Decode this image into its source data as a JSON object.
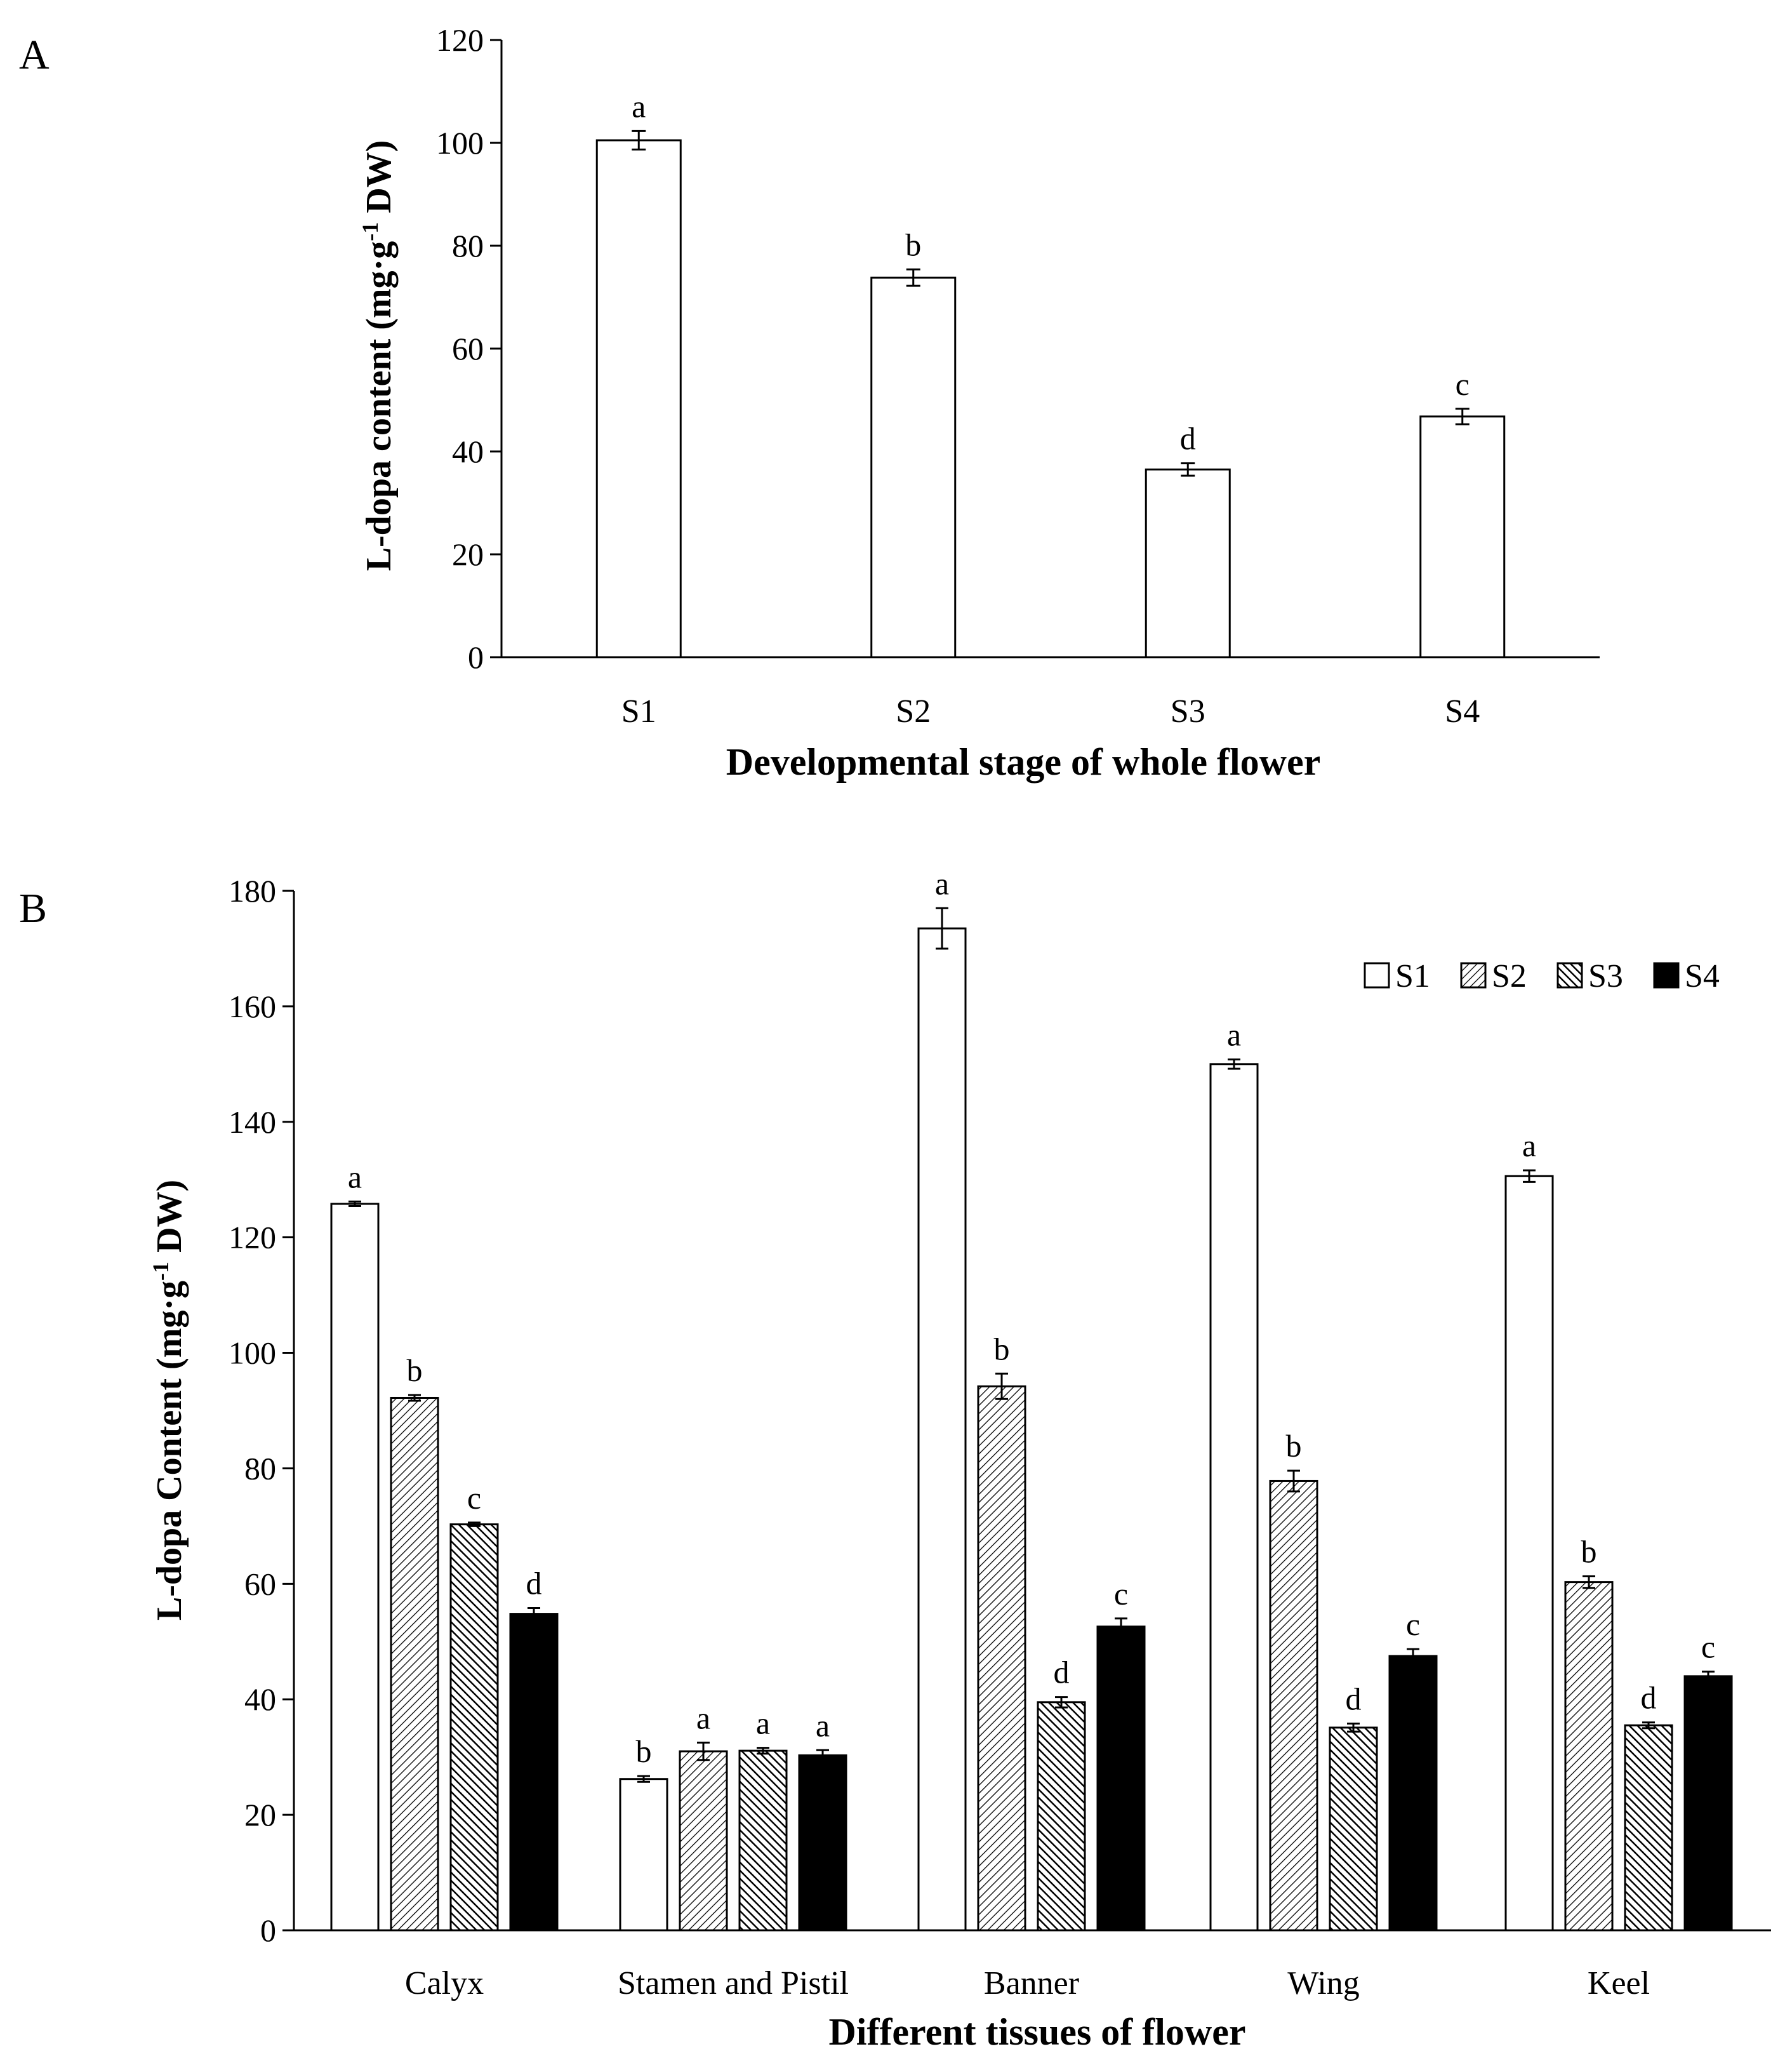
{
  "chart_data": [
    {
      "panel": "A",
      "type": "bar",
      "categories": [
        "S1",
        "S2",
        "S3",
        "S4"
      ],
      "values": [
        100.5,
        73.8,
        36.5,
        46.8
      ],
      "errors": [
        1.8,
        1.6,
        1.2,
        1.5
      ],
      "letters": [
        "a",
        "b",
        "d",
        "c"
      ],
      "xlabel": "Developmental stage of whole flower",
      "ylabel_main": "L-dopa content (mg·g",
      "ylabel_sup": "-1",
      "ylabel_end": " DW)",
      "ylim": [
        0,
        120
      ],
      "yticks": [
        "0",
        "20",
        "40",
        "60",
        "80",
        "100",
        "120"
      ],
      "grid": false
    },
    {
      "panel": "B",
      "type": "bar",
      "categories": [
        "Calyx",
        "Stamen and Pistil",
        "Banner",
        "Wing",
        "Keel"
      ],
      "series": [
        {
          "name": "S1",
          "values": [
            125.8,
            26.2,
            173.5,
            150.0,
            130.6
          ],
          "errors": [
            0.4,
            0.5,
            3.5,
            0.8,
            1.0
          ],
          "letters": [
            "a",
            "b",
            "a",
            "a",
            "a"
          ],
          "fill": "#ffffff"
        },
        {
          "name": "S2",
          "values": [
            92.2,
            31.0,
            94.2,
            77.8,
            60.3
          ],
          "errors": [
            0.5,
            1.5,
            2.2,
            1.8,
            1.0
          ],
          "letters": [
            "b",
            "a",
            "b",
            "b",
            "b"
          ],
          "fill": "hatch-light"
        },
        {
          "name": "S3",
          "values": [
            70.3,
            31.1,
            39.5,
            35.1,
            35.5
          ],
          "errors": [
            0.3,
            0.5,
            0.9,
            0.7,
            0.5
          ],
          "letters": [
            "c",
            "a",
            "d",
            "d",
            "d"
          ],
          "fill": "hatch-dense"
        },
        {
          "name": "S4",
          "values": [
            54.8,
            30.3,
            52.6,
            47.5,
            44.0
          ],
          "errors": [
            1.0,
            0.9,
            1.4,
            1.2,
            0.8
          ],
          "letters": [
            "d",
            "a",
            "c",
            "c",
            "c"
          ],
          "fill": "#000000"
        }
      ],
      "xlabel": "Different tissues of flower",
      "ylabel_main": "L-dopa Content (mg·g",
      "ylabel_sup": "-1",
      "ylabel_end": " DW)",
      "ylim": [
        0,
        180
      ],
      "yticks": [
        "0",
        "20",
        "40",
        "60",
        "80",
        "100",
        "120",
        "140",
        "160",
        "180"
      ],
      "legend_position": "top-right",
      "grid": false
    }
  ],
  "labels": {
    "panel_a": "A",
    "panel_b": "B"
  },
  "colors": {
    "axis": "#000000",
    "bar_edge": "#000000"
  }
}
